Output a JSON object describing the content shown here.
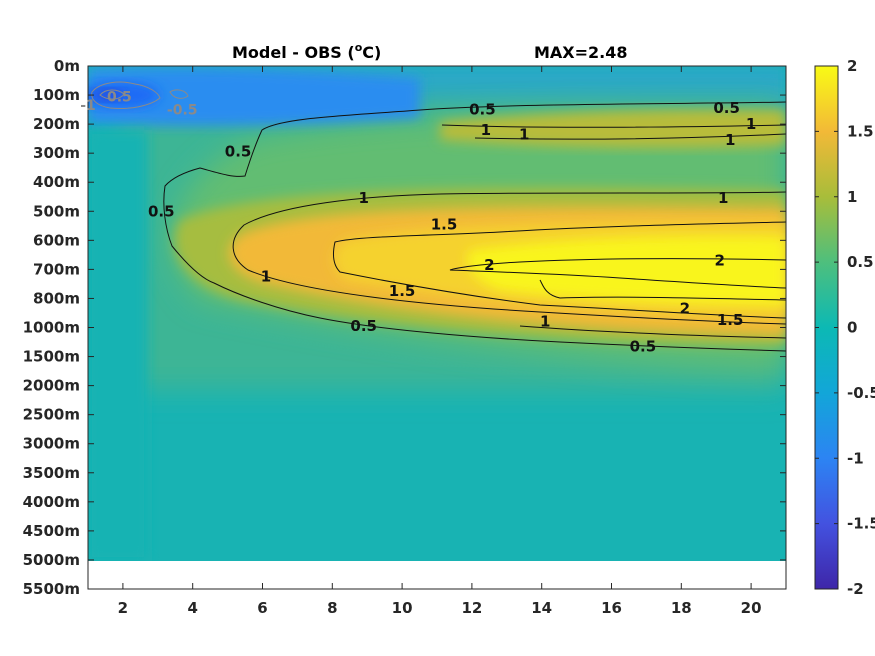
{
  "chart_data": {
    "type": "heatmap",
    "title": "Model - OBS (",
    "title_unit": "o",
    "title_unit_suffix": "C)",
    "max_label": "MAX=2.48",
    "x_ticks": [
      2,
      4,
      6,
      8,
      10,
      12,
      14,
      16,
      18,
      20
    ],
    "x_tick_labels": [
      "2",
      "4",
      "6",
      "8",
      "10",
      "12",
      "14",
      "16",
      "18",
      "20"
    ],
    "xlim": [
      1,
      21
    ],
    "y_tick_labels": [
      "0m",
      "100m",
      "200m",
      "300m",
      "400m",
      "500m",
      "600m",
      "700m",
      "800m",
      "1000m",
      "1500m",
      "2000m",
      "2500m",
      "3000m",
      "3500m",
      "4000m",
      "4500m",
      "5000m",
      "5500m"
    ],
    "data_bottom_label": "5000m",
    "colorbar": {
      "range": [
        -2,
        2
      ],
      "tick_values": [
        2,
        1.5,
        1,
        0.5,
        0,
        -0.5,
        -1,
        -1.5,
        -2
      ],
      "tick_labels": [
        "2",
        "1.5",
        "1",
        "0.5",
        "0",
        "-0.5",
        "-1",
        "-1.5",
        "-2"
      ],
      "colormap": "parula"
    },
    "contour_labels": [
      {
        "text": "0.5",
        "x": 1.9,
        "level": 1.05,
        "style": "light"
      },
      {
        "text": "-1",
        "x": 1.0,
        "level": 1.35,
        "style": "light"
      },
      {
        "text": "-0.5",
        "x": 3.7,
        "level": 1.5,
        "style": "light"
      },
      {
        "text": "0.5",
        "x": 12.3,
        "level": 1.5,
        "style": "dark"
      },
      {
        "text": "0.5",
        "x": 19.3,
        "level": 1.45,
        "style": "dark"
      },
      {
        "text": "1",
        "x": 12.4,
        "level": 2.2,
        "style": "dark"
      },
      {
        "text": "1",
        "x": 13.5,
        "level": 2.35,
        "style": "dark"
      },
      {
        "text": "1",
        "x": 20.0,
        "level": 2.0,
        "style": "dark"
      },
      {
        "text": "1",
        "x": 19.4,
        "level": 2.55,
        "style": "dark"
      },
      {
        "text": "0.5",
        "x": 5.3,
        "level": 2.95,
        "style": "dark"
      },
      {
        "text": "0.5",
        "x": 3.1,
        "level": 5.0,
        "style": "dark"
      },
      {
        "text": "1",
        "x": 8.9,
        "level": 4.55,
        "style": "dark"
      },
      {
        "text": "1",
        "x": 19.2,
        "level": 4.55,
        "style": "dark"
      },
      {
        "text": "1.5",
        "x": 11.2,
        "level": 5.45,
        "style": "dark"
      },
      {
        "text": "2",
        "x": 12.5,
        "level": 6.85,
        "style": "dark"
      },
      {
        "text": "2",
        "x": 19.1,
        "level": 6.7,
        "style": "dark"
      },
      {
        "text": "1",
        "x": 6.1,
        "level": 7.25,
        "style": "dark"
      },
      {
        "text": "1.5",
        "x": 10.0,
        "level": 7.75,
        "style": "dark"
      },
      {
        "text": "2",
        "x": 18.1,
        "level": 8.35,
        "style": "dark"
      },
      {
        "text": "1.5",
        "x": 19.4,
        "level": 8.75,
        "style": "dark"
      },
      {
        "text": "1",
        "x": 14.1,
        "level": 8.8,
        "style": "dark"
      },
      {
        "text": "0.5",
        "x": 8.9,
        "level": 8.95,
        "style": "dark"
      },
      {
        "text": "0.5",
        "x": 16.9,
        "level": 9.65,
        "style": "dark"
      }
    ]
  }
}
